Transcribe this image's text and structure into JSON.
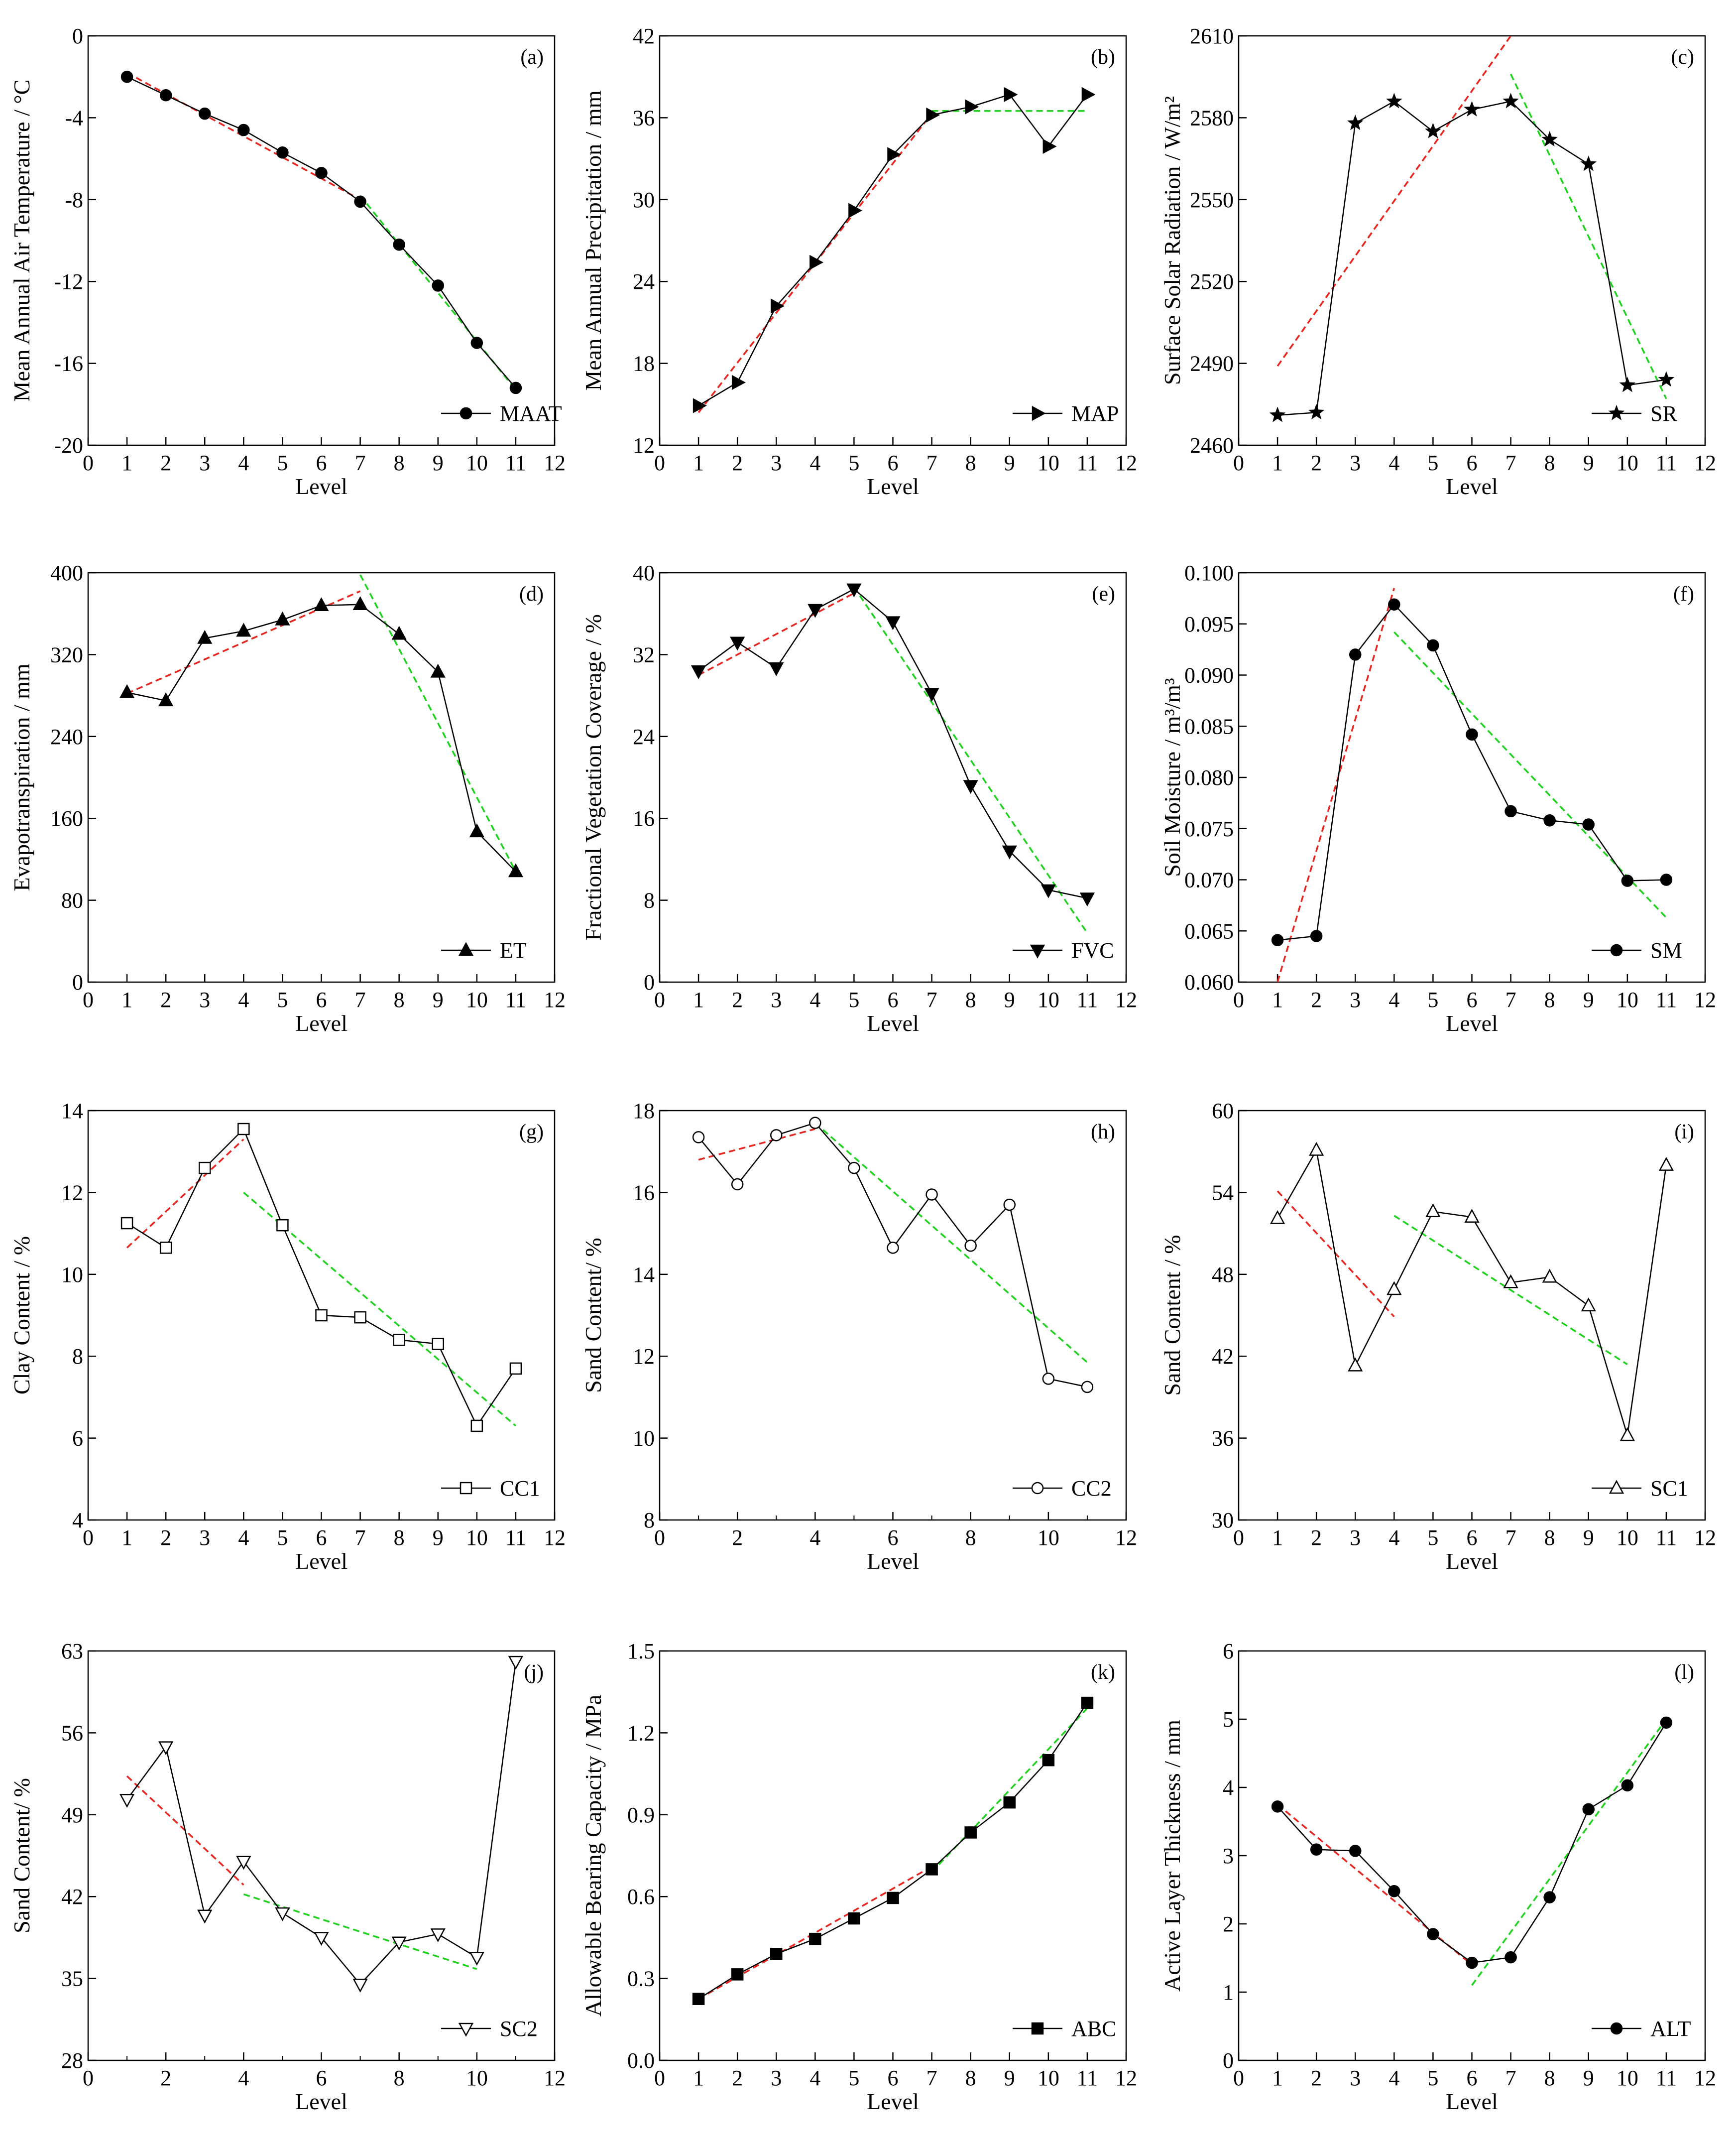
{
  "figure": {
    "chart_data": [
      {
        "type": "line",
        "panel_label": "(a)",
        "xlabel": "Level",
        "ylabel": "Mean Annual Air Temperature / °C",
        "xlim": [
          0,
          12
        ],
        "ylim": [
          -20,
          0
        ],
        "xticks": [
          0,
          1,
          2,
          3,
          4,
          5,
          6,
          7,
          8,
          9,
          10,
          11,
          12
        ],
        "yticks": [
          -20,
          -16,
          -12,
          -8,
          -4,
          0
        ],
        "marker": "circle",
        "series": [
          {
            "name": "MAAT",
            "x": [
              1,
              2,
              3,
              4,
              5,
              6,
              7,
              8,
              9,
              10,
              11
            ],
            "y": [
              -2.0,
              -2.9,
              -3.8,
              -4.6,
              -5.7,
              -6.7,
              -8.1,
              -10.2,
              -12.2,
              -15.0,
              -17.2
            ]
          }
        ],
        "fits": [
          {
            "color": "#e8251f",
            "from": [
              1,
              -1.8
            ],
            "to": [
              7,
              -8.0
            ]
          },
          {
            "color": "#1ed21e",
            "from": [
              7,
              -7.8
            ],
            "to": [
              11,
              -17.3
            ]
          }
        ],
        "legend_position": "bottom-right"
      },
      {
        "type": "line",
        "panel_label": "(b)",
        "xlabel": "Level",
        "ylabel": "Mean Annual Precipitation / mm",
        "xlim": [
          0,
          12
        ],
        "ylim": [
          12,
          42
        ],
        "xticks": [
          0,
          1,
          2,
          3,
          4,
          5,
          6,
          7,
          8,
          9,
          10,
          11,
          12
        ],
        "yticks": [
          12,
          18,
          24,
          30,
          36,
          42
        ],
        "marker": "triangle-right",
        "series": [
          {
            "name": "MAP",
            "x": [
              1,
              2,
              3,
              4,
              5,
              6,
              7,
              8,
              9,
              10,
              11
            ],
            "y": [
              14.9,
              16.6,
              22.2,
              25.4,
              29.2,
              33.3,
              36.2,
              36.8,
              37.7,
              33.9,
              37.7
            ]
          }
        ],
        "fits": [
          {
            "color": "#e8251f",
            "from": [
              1,
              14.4
            ],
            "to": [
              7,
              36.3
            ]
          },
          {
            "color": "#1ed21e",
            "from": [
              7,
              36.5
            ],
            "to": [
              11,
              36.5
            ]
          }
        ],
        "legend_position": "bottom-right"
      },
      {
        "type": "line",
        "panel_label": "(c)",
        "xlabel": "Level",
        "ylabel": "Surface Solar Radiation / W/m²",
        "xlim": [
          0,
          12
        ],
        "ylim": [
          2460,
          2610
        ],
        "xticks": [
          0,
          1,
          2,
          3,
          4,
          5,
          6,
          7,
          8,
          9,
          10,
          11,
          12
        ],
        "yticks": [
          2460,
          2490,
          2520,
          2550,
          2580,
          2610
        ],
        "marker": "star",
        "series": [
          {
            "name": "SR",
            "x": [
              1,
              2,
              3,
              4,
              5,
              6,
              7,
              8,
              9,
              10,
              11
            ],
            "y": [
              2471,
              2472,
              2578,
              2586,
              2575,
              2583,
              2586,
              2572,
              2563,
              2482,
              2484
            ]
          }
        ],
        "fits": [
          {
            "color": "#e8251f",
            "from": [
              1,
              2489
            ],
            "to": [
              7,
              2610
            ]
          },
          {
            "color": "#1ed21e",
            "from": [
              7,
              2596
            ],
            "to": [
              11,
              2477
            ]
          }
        ],
        "legend_position": "bottom-right"
      },
      {
        "type": "line",
        "panel_label": "(d)",
        "xlabel": "Level",
        "ylabel": "Evapotranspiration / mm",
        "xlim": [
          0,
          12
        ],
        "ylim": [
          0,
          400
        ],
        "xticks": [
          0,
          1,
          2,
          3,
          4,
          5,
          6,
          7,
          8,
          9,
          10,
          11,
          12
        ],
        "yticks": [
          0,
          80,
          160,
          240,
          320,
          400
        ],
        "marker": "triangle-up",
        "series": [
          {
            "name": "ET",
            "x": [
              1,
              2,
              3,
              4,
              5,
              6,
              7,
              8,
              9,
              10,
              11
            ],
            "y": [
              283,
              275,
              336,
              343,
              354,
              368,
              369,
              340,
              303,
              147,
              108
            ]
          }
        ],
        "fits": [
          {
            "color": "#e8251f",
            "from": [
              1,
              282
            ],
            "to": [
              7,
              382
            ]
          },
          {
            "color": "#1ed21e",
            "from": [
              7,
              398
            ],
            "to": [
              11,
              108
            ]
          }
        ],
        "legend_position": "bottom-right"
      },
      {
        "type": "line",
        "panel_label": "(e)",
        "xlabel": "Level",
        "ylabel": "Fractional Vegetation Coverage / %",
        "xlim": [
          0,
          12
        ],
        "ylim": [
          0,
          40
        ],
        "xticks": [
          0,
          1,
          2,
          3,
          4,
          5,
          6,
          7,
          8,
          9,
          10,
          11,
          12
        ],
        "yticks": [
          0,
          8,
          16,
          24,
          32,
          40
        ],
        "marker": "triangle-down",
        "series": [
          {
            "name": "FVC",
            "x": [
              1,
              2,
              3,
              4,
              5,
              6,
              7,
              8,
              9,
              10,
              11
            ],
            "y": [
              30.4,
              33.2,
              30.7,
              36.4,
              38.4,
              35.2,
              28.2,
              19.2,
              12.8,
              9.0,
              8.2
            ]
          }
        ],
        "fits": [
          {
            "color": "#e8251f",
            "from": [
              1,
              30.0
            ],
            "to": [
              5,
              38.0
            ]
          },
          {
            "color": "#1ed21e",
            "from": [
              5,
              38.6
            ],
            "to": [
              11,
              4.8
            ]
          }
        ],
        "legend_position": "bottom-right"
      },
      {
        "type": "line",
        "panel_label": "(f)",
        "xlabel": "Level",
        "ylabel": "Soil Moisture / m³/m³",
        "xlim": [
          0,
          12
        ],
        "ylim": [
          0.06,
          0.1
        ],
        "xticks": [
          0,
          1,
          2,
          3,
          4,
          5,
          6,
          7,
          8,
          9,
          10,
          11,
          12
        ],
        "yticks": [
          0.06,
          0.065,
          0.07,
          0.075,
          0.08,
          0.085,
          0.09,
          0.095,
          0.1
        ],
        "ytick_labels": [
          "0.060",
          "0.065",
          "0.070",
          "0.075",
          "0.080",
          "0.085",
          "0.090",
          "0.095",
          "0.100"
        ],
        "marker": "circle",
        "series": [
          {
            "name": "SM",
            "x": [
              1,
              2,
              3,
              4,
              5,
              6,
              7,
              8,
              9,
              10,
              11
            ],
            "y": [
              0.0641,
              0.0645,
              0.092,
              0.0969,
              0.0929,
              0.0842,
              0.0767,
              0.0758,
              0.0754,
              0.0699,
              0.07
            ]
          }
        ],
        "fits": [
          {
            "color": "#e8251f",
            "from": [
              1,
              0.06
            ],
            "to": [
              4,
              0.0985
            ]
          },
          {
            "color": "#1ed21e",
            "from": [
              4,
              0.0942
            ],
            "to": [
              11,
              0.0663
            ]
          }
        ],
        "legend_position": "bottom-right"
      },
      {
        "type": "line",
        "panel_label": "(g)",
        "xlabel": "Level",
        "ylabel": "Clay Content / %",
        "xlim": [
          0,
          12
        ],
        "ylim": [
          4,
          14
        ],
        "xticks": [
          0,
          1,
          2,
          3,
          4,
          5,
          6,
          7,
          8,
          9,
          10,
          11,
          12
        ],
        "yticks": [
          4,
          6,
          8,
          10,
          12,
          14
        ],
        "marker": "square-open",
        "series": [
          {
            "name": "CC1",
            "x": [
              1,
              2,
              3,
              4,
              5,
              6,
              7,
              8,
              9,
              10,
              11
            ],
            "y": [
              11.25,
              10.65,
              12.6,
              13.55,
              11.2,
              9.0,
              8.95,
              8.4,
              8.3,
              6.3,
              7.7
            ]
          }
        ],
        "fits": [
          {
            "color": "#e8251f",
            "from": [
              1,
              10.65
            ],
            "to": [
              4,
              13.3
            ]
          },
          {
            "color": "#1ed21e",
            "from": [
              4,
              12.0
            ],
            "to": [
              11,
              6.3
            ]
          }
        ],
        "legend_position": "bottom-right"
      },
      {
        "type": "line",
        "panel_label": "(h)",
        "xlabel": "Level",
        "ylabel": "Sand Content/ %",
        "xlim": [
          0,
          12
        ],
        "ylim": [
          8,
          18
        ],
        "xticks": [
          0,
          2,
          4,
          6,
          8,
          10,
          12
        ],
        "yticks": [
          8,
          10,
          12,
          14,
          16,
          18
        ],
        "marker": "circle-open",
        "series": [
          {
            "name": "CC2",
            "x": [
              1,
              2,
              3,
              4,
              5,
              6,
              7,
              8,
              9,
              10,
              11
            ],
            "y": [
              17.35,
              16.2,
              17.4,
              17.7,
              16.6,
              14.65,
              15.95,
              14.7,
              15.7,
              11.45,
              11.25
            ]
          }
        ],
        "fits": [
          {
            "color": "#e8251f",
            "from": [
              1,
              16.8
            ],
            "to": [
              4,
              17.55
            ]
          },
          {
            "color": "#1ed21e",
            "from": [
              4,
              17.7
            ],
            "to": [
              11,
              11.85
            ]
          }
        ],
        "legend_position": "bottom-right"
      },
      {
        "type": "line",
        "panel_label": "(i)",
        "xlabel": "Level",
        "ylabel": "Sand Content / %",
        "xlim": [
          0,
          12
        ],
        "ylim": [
          30,
          60
        ],
        "xticks": [
          0,
          1,
          2,
          3,
          4,
          5,
          6,
          7,
          8,
          9,
          10,
          11,
          12
        ],
        "yticks": [
          30,
          36,
          42,
          48,
          54,
          60
        ],
        "marker": "triangle-up-open",
        "series": [
          {
            "name": "SC1",
            "x": [
              1,
              2,
              3,
              4,
              5,
              6,
              7,
              8,
              9,
              10,
              11
            ],
            "y": [
              52.1,
              57.1,
              41.3,
              46.9,
              52.6,
              52.2,
              47.4,
              47.8,
              45.7,
              36.2,
              56.0
            ]
          }
        ],
        "fits": [
          {
            "color": "#e8251f",
            "from": [
              1,
              54.1
            ],
            "to": [
              4,
              44.9
            ]
          },
          {
            "color": "#1ed21e",
            "from": [
              4,
              52.3
            ],
            "to": [
              10,
              41.4
            ]
          }
        ],
        "legend_position": "bottom-right"
      },
      {
        "type": "line",
        "panel_label": "(j)",
        "xlabel": "Level",
        "ylabel": "Sand Content/ %",
        "xlim": [
          0,
          12
        ],
        "ylim": [
          28,
          63
        ],
        "xticks": [
          0,
          2,
          4,
          6,
          8,
          10,
          12
        ],
        "yticks": [
          28,
          35,
          42,
          49,
          56,
          63
        ],
        "marker": "triangle-down-open",
        "series": [
          {
            "name": "SC2",
            "x": [
              1,
              2,
              3,
              4,
              5,
              6,
              7,
              8,
              9,
              10,
              11
            ],
            "y": [
              50.3,
              54.8,
              40.4,
              45.0,
              40.6,
              38.5,
              34.5,
              38.1,
              38.8,
              36.8,
              62.1
            ]
          }
        ],
        "fits": [
          {
            "color": "#e8251f",
            "from": [
              1,
              52.3
            ],
            "to": [
              4,
              43.0
            ]
          },
          {
            "color": "#1ed21e",
            "from": [
              4,
              42.2
            ],
            "to": [
              10,
              35.8
            ]
          }
        ],
        "legend_position": "bottom-right"
      },
      {
        "type": "line",
        "panel_label": "(k)",
        "xlabel": "Level",
        "ylabel": "Allowable Bearing Capacity / MPa",
        "xlim": [
          0,
          12
        ],
        "ylim": [
          0,
          1.5
        ],
        "xticks": [
          0,
          1,
          2,
          3,
          4,
          5,
          6,
          7,
          8,
          9,
          10,
          11,
          12
        ],
        "yticks": [
          0,
          0.3,
          0.6,
          0.9,
          1.2,
          1.5
        ],
        "ytick_labels": [
          "0.0",
          "0.3",
          "0.6",
          "0.9",
          "1.2",
          "1.5"
        ],
        "marker": "square",
        "series": [
          {
            "name": "ABC",
            "x": [
              1,
              2,
              3,
              4,
              5,
              6,
              7,
              8,
              9,
              10,
              11
            ],
            "y": [
              0.225,
              0.315,
              0.39,
              0.445,
              0.52,
              0.595,
              0.7,
              0.835,
              0.945,
              1.1,
              1.31
            ]
          }
        ],
        "fits": [
          {
            "color": "#e8251f",
            "from": [
              1,
              0.225
            ],
            "to": [
              7,
              0.71
            ]
          },
          {
            "color": "#1ed21e",
            "from": [
              7,
              0.69
            ],
            "to": [
              11,
              1.29
            ]
          }
        ],
        "legend_position": "bottom-right"
      },
      {
        "type": "line",
        "panel_label": "(l)",
        "xlabel": "Level",
        "ylabel": "Active Layer Thickness / mm",
        "xlim": [
          0,
          12
        ],
        "ylim": [
          0,
          6
        ],
        "xticks": [
          0,
          1,
          2,
          3,
          4,
          5,
          6,
          7,
          8,
          9,
          10,
          11,
          12
        ],
        "yticks": [
          0,
          1,
          2,
          3,
          4,
          5,
          6
        ],
        "marker": "circle",
        "series": [
          {
            "name": "ALT",
            "x": [
              1,
              2,
              3,
              4,
              5,
              6,
              7,
              8,
              9,
              10,
              11
            ],
            "y": [
              3.72,
              3.09,
              3.07,
              2.48,
              1.85,
              1.43,
              1.51,
              2.39,
              3.68,
              4.03,
              4.95
            ]
          }
        ],
        "fits": [
          {
            "color": "#e8251f",
            "from": [
              1,
              3.75
            ],
            "to": [
              6,
              1.4
            ]
          },
          {
            "color": "#1ed21e",
            "from": [
              6,
              1.1
            ],
            "to": [
              11,
              5.0
            ]
          }
        ],
        "legend_position": "bottom-right"
      }
    ]
  }
}
